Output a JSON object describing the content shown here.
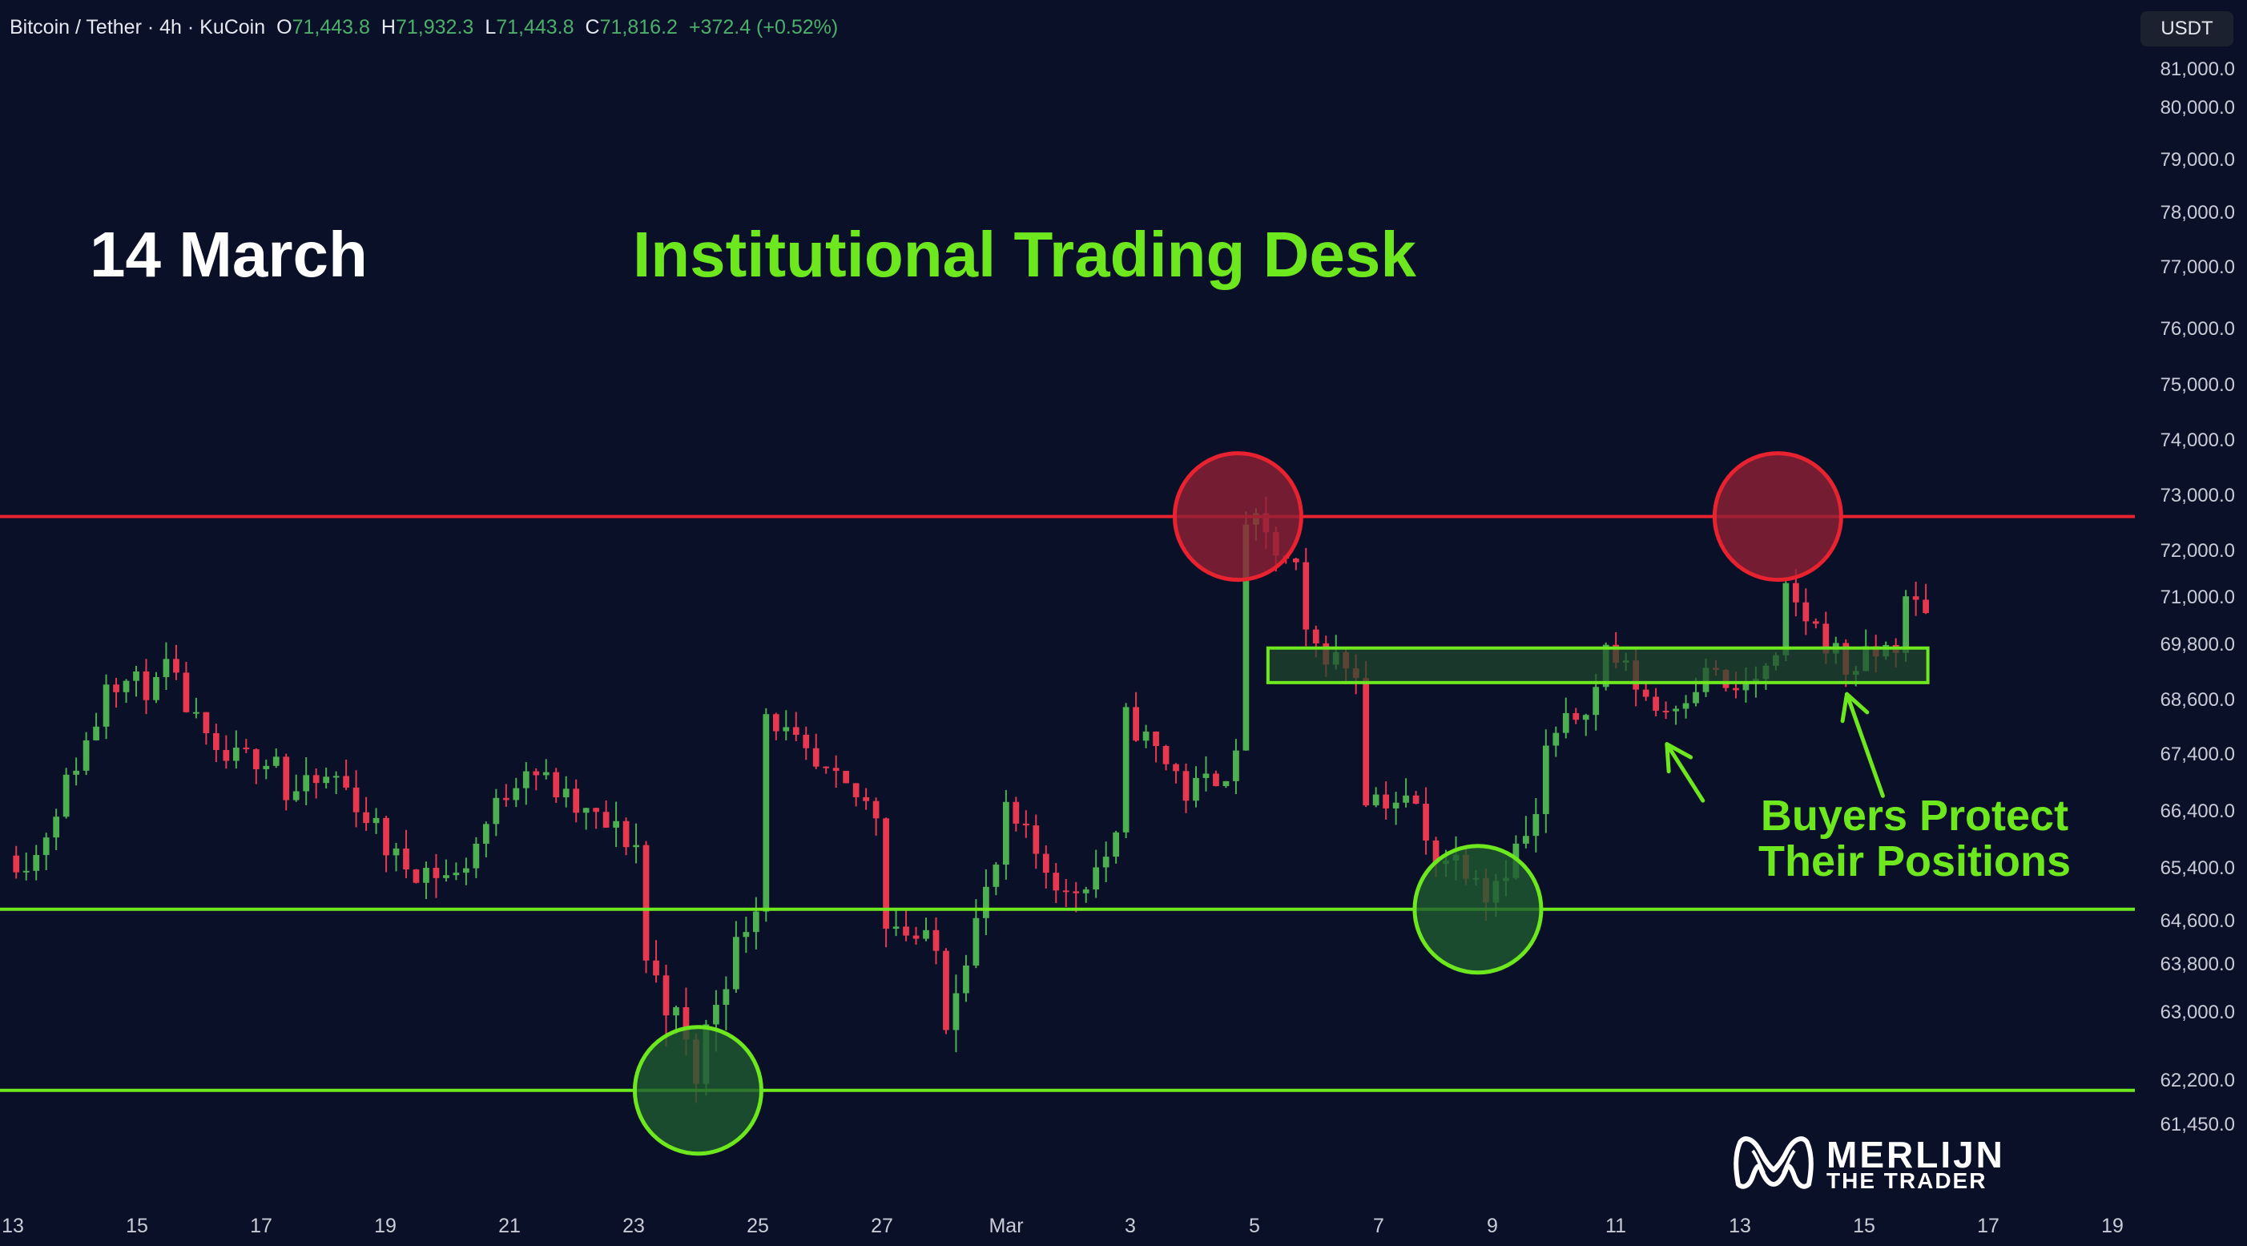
{
  "header": {
    "symbol": "Bitcoin / Tether · 4h · KuCoin",
    "open_key": "O",
    "open": "71,443.8",
    "high_key": "H",
    "high": "71,932.3",
    "low_key": "L",
    "low": "71,443.8",
    "close_key": "C",
    "close": "71,816.2",
    "change": "+372.4 (+0.52%)"
  },
  "currency": "USDT",
  "overlay": {
    "date": "14 March",
    "title": "Institutional Trading Desk",
    "annotation_line1": "Buyers Protect",
    "annotation_line2": "Their Positions"
  },
  "logo": {
    "line1": "MERLIJN",
    "line2": "THE TRADER",
    "mark": "merlijn-logo-icon"
  },
  "colors": {
    "background": "#0b1029",
    "up": "#4caf50",
    "down": "#e8384f",
    "resistance": "#e8222e",
    "support": "#6ee81e",
    "zone_fill": "#1f4a2c"
  },
  "chart_data": {
    "type": "candlestick",
    "timeframe": "4h",
    "y_axis_ticks": [
      "81,000.0",
      "80,000.0",
      "79,000.0",
      "78,000.0",
      "77,000.0",
      "76,000.0",
      "75,000.0",
      "74,000.0",
      "73,000.0",
      "72,000.0",
      "71,000.0",
      "69,800.0",
      "68,600.0",
      "67,400.0",
      "66,400.0",
      "65,400.0",
      "64,600.0",
      "63,800.0",
      "63,000.0",
      "62,200.0",
      "61,450.0"
    ],
    "x_axis_ticks": [
      "13",
      "15",
      "17",
      "19",
      "21",
      "23",
      "25",
      "27",
      "Mar",
      "3",
      "5",
      "7",
      "9",
      "11",
      "13",
      "15",
      "17",
      "19"
    ],
    "x_domain": [
      "2024-02-13",
      "2024-03-19"
    ],
    "resistance_level": 73600,
    "support_levels": [
      65600,
      62800
    ],
    "demand_zone": {
      "from": "2024-03-05",
      "to": "2024-03-15",
      "low": 70150,
      "high": 70900
    },
    "circles": [
      {
        "kind": "resistance",
        "date": "2024-03-04",
        "price": 73600
      },
      {
        "kind": "resistance",
        "date": "2024-03-13",
        "price": 73600
      },
      {
        "kind": "support",
        "date": "2024-02-24",
        "price": 62800
      },
      {
        "kind": "support",
        "date": "2024-03-08",
        "price": 65600
      }
    ],
    "arrows": [
      {
        "from_date": "2024-03-12",
        "from_price": 67600,
        "to_date": "2024-03-11",
        "to_price": 68800
      },
      {
        "from_date": "2024-03-15",
        "from_price": 67700,
        "to_date": "2024-03-14",
        "to_price": 69900
      }
    ],
    "anchors": [
      [
        "2024-02-13",
        66600
      ],
      [
        "2024-02-14",
        69300
      ],
      [
        "2024-02-14",
        70350
      ],
      [
        "2024-02-15",
        70000
      ],
      [
        "2024-02-15",
        70900
      ],
      [
        "2024-02-16",
        68400
      ],
      [
        "2024-02-17",
        68600
      ],
      [
        "2024-02-17",
        67600
      ],
      [
        "2024-02-18",
        68100
      ],
      [
        "2024-02-19",
        66500
      ],
      [
        "2024-02-20",
        66200
      ],
      [
        "2024-02-21",
        68100
      ],
      [
        "2024-02-21",
        68600
      ],
      [
        "2024-02-22",
        67400
      ],
      [
        "2024-02-23",
        66800
      ],
      [
        "2024-02-23",
        65000
      ],
      [
        "2024-02-24",
        63000
      ],
      [
        "2024-02-24",
        63100
      ],
      [
        "2024-02-25",
        65800
      ],
      [
        "2024-02-25",
        69800
      ],
      [
        "2024-02-26",
        68200
      ],
      [
        "2024-02-27",
        67400
      ],
      [
        "2024-02-27",
        65600
      ],
      [
        "2024-02-28",
        64800
      ],
      [
        "2024-02-28",
        63300
      ],
      [
        "2024-02-29",
        66400
      ],
      [
        "2024-02-29",
        67500
      ],
      [
        "2024-03-01",
        66200
      ],
      [
        "2024-03-01",
        65600
      ],
      [
        "2024-03-02",
        66800
      ],
      [
        "2024-03-02",
        69600
      ],
      [
        "2024-03-03",
        68200
      ],
      [
        "2024-03-03",
        67600
      ],
      [
        "2024-03-04",
        68400
      ],
      [
        "2024-03-04",
        73800
      ],
      [
        "2024-03-05",
        72500
      ],
      [
        "2024-03-05",
        71200
      ],
      [
        "2024-03-06",
        70400
      ],
      [
        "2024-03-06",
        67800
      ],
      [
        "2024-03-07",
        67500
      ],
      [
        "2024-03-07",
        66800
      ],
      [
        "2024-03-08",
        66400
      ],
      [
        "2024-03-08",
        65700
      ],
      [
        "2024-03-09",
        67200
      ],
      [
        "2024-03-09",
        68400
      ],
      [
        "2024-03-10",
        70000
      ],
      [
        "2024-03-10",
        71200
      ],
      [
        "2024-03-11",
        69600
      ],
      [
        "2024-03-11",
        69400
      ],
      [
        "2024-03-12",
        70500
      ],
      [
        "2024-03-12",
        69700
      ],
      [
        "2024-03-13",
        70500
      ],
      [
        "2024-03-13",
        72300
      ],
      [
        "2024-03-14",
        70800
      ],
      [
        "2024-03-14",
        70300
      ],
      [
        "2024-03-15",
        71000
      ],
      [
        "2024-03-15",
        71816
      ]
    ]
  }
}
